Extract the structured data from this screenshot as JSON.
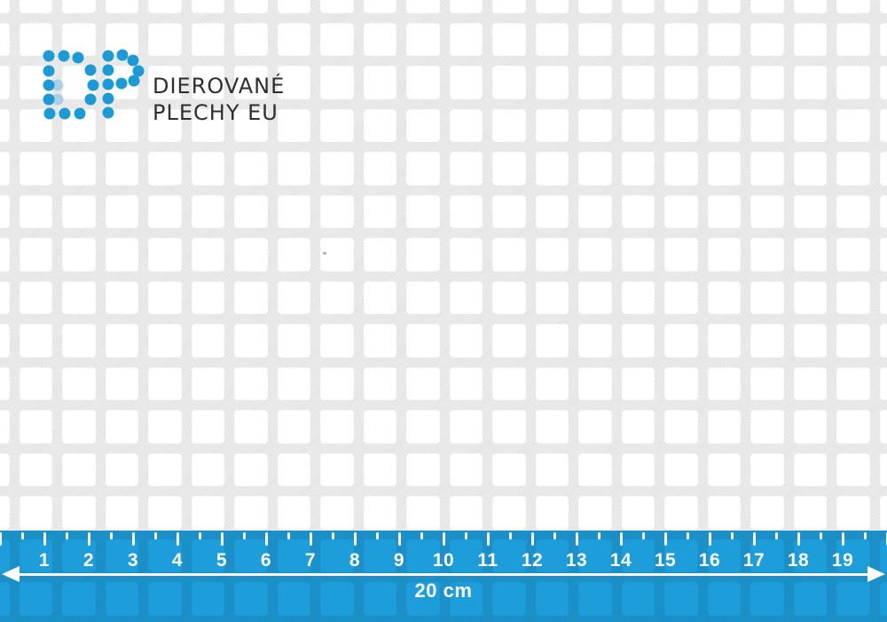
{
  "brand": {
    "line1": "DIEROVANÉ",
    "line2": "PLECHY EU",
    "dot_color": "#1b9ad6",
    "text_color": "#2e2e2e"
  },
  "sheet": {
    "metal_color": "#e6e6e6",
    "hole_color": "#ffffff"
  },
  "ruler": {
    "color": "#1d9edb",
    "tick_color": "#ffffff",
    "labels": [
      "1",
      "2",
      "3",
      "4",
      "5",
      "6",
      "7",
      "8",
      "9",
      "10",
      "11",
      "12",
      "13",
      "14",
      "15",
      "16",
      "17",
      "18",
      "19"
    ],
    "total_label": "20 cm"
  }
}
